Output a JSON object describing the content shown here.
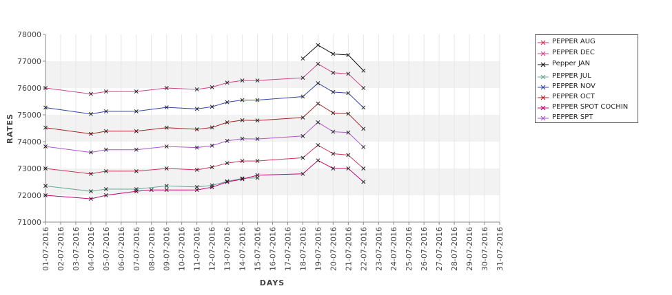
{
  "chart_data": {
    "type": "line",
    "xlabel": "DAYS",
    "ylabel": "RATES",
    "ylim": [
      71000,
      78000
    ],
    "yticks": [
      71000,
      72000,
      73000,
      74000,
      75000,
      76000,
      77000,
      78000
    ],
    "categories": [
      "01-07-2016",
      "02-07-2016",
      "03-07-2016",
      "04-07-2016",
      "05-07-2016",
      "06-07-2016",
      "07-07-2016",
      "08-07-2016",
      "09-07-2016",
      "10-07-2016",
      "11-07-2016",
      "12-07-2016",
      "13-07-2016",
      "14-07-2016",
      "15-07-2016",
      "16-07-2016",
      "17-07-2016",
      "18-07-2016",
      "19-07-2016",
      "20-07-2016",
      "21-07-2016",
      "22-07-2016",
      "23-07-2016",
      "24-07-2016",
      "25-07-2016",
      "26-07-2016",
      "27-07-2016",
      "28-07-2016",
      "29-07-2016",
      "30-07-2016",
      "31-07-2016"
    ],
    "grid": true,
    "legend_position": "right",
    "series": [
      {
        "name": "PEPPER AUG",
        "color": "#cc3355",
        "points": [
          [
            "01-07-2016",
            73000
          ],
          [
            "04-07-2016",
            72800
          ],
          [
            "05-07-2016",
            72900
          ],
          [
            "07-07-2016",
            72900
          ],
          [
            "09-07-2016",
            73000
          ],
          [
            "11-07-2016",
            72950
          ],
          [
            "12-07-2016",
            73050
          ],
          [
            "13-07-2016",
            73200
          ],
          [
            "14-07-2016",
            73280
          ],
          [
            "15-07-2016",
            73280
          ],
          [
            "18-07-2016",
            73400
          ],
          [
            "19-07-2016",
            73870
          ],
          [
            "20-07-2016",
            73550
          ],
          [
            "21-07-2016",
            73500
          ],
          [
            "22-07-2016",
            73000
          ]
        ]
      },
      {
        "name": "PEPPER DEC",
        "color": "#cc4488",
        "points": [
          [
            "01-07-2016",
            76000
          ],
          [
            "04-07-2016",
            75780
          ],
          [
            "05-07-2016",
            75870
          ],
          [
            "07-07-2016",
            75870
          ],
          [
            "09-07-2016",
            76000
          ],
          [
            "11-07-2016",
            75950
          ],
          [
            "12-07-2016",
            76030
          ],
          [
            "13-07-2016",
            76200
          ],
          [
            "14-07-2016",
            76280
          ],
          [
            "15-07-2016",
            76280
          ],
          [
            "18-07-2016",
            76380
          ],
          [
            "19-07-2016",
            76900
          ],
          [
            "20-07-2016",
            76570
          ],
          [
            "21-07-2016",
            76530
          ],
          [
            "22-07-2016",
            76000
          ]
        ]
      },
      {
        "name": "Pepper JAN",
        "color": "#111111",
        "points": [
          [
            "18-07-2016",
            77100
          ],
          [
            "19-07-2016",
            77600
          ],
          [
            "20-07-2016",
            77270
          ],
          [
            "21-07-2016",
            77230
          ],
          [
            "22-07-2016",
            76650
          ]
        ]
      },
      {
        "name": "PEPPER JUL",
        "color": "#66aa99",
        "points": [
          [
            "01-07-2016",
            72350
          ],
          [
            "04-07-2016",
            72150
          ],
          [
            "05-07-2016",
            72230
          ],
          [
            "07-07-2016",
            72230
          ],
          [
            "09-07-2016",
            72350
          ],
          [
            "11-07-2016",
            72310
          ],
          [
            "12-07-2016",
            72370
          ],
          [
            "13-07-2016",
            72520
          ],
          [
            "14-07-2016",
            72630
          ],
          [
            "15-07-2016",
            72650
          ]
        ]
      },
      {
        "name": "PEPPER NOV",
        "color": "#3344aa",
        "points": [
          [
            "01-07-2016",
            75270
          ],
          [
            "04-07-2016",
            75030
          ],
          [
            "05-07-2016",
            75130
          ],
          [
            "07-07-2016",
            75130
          ],
          [
            "09-07-2016",
            75280
          ],
          [
            "11-07-2016",
            75220
          ],
          [
            "12-07-2016",
            75300
          ],
          [
            "13-07-2016",
            75470
          ],
          [
            "14-07-2016",
            75550
          ],
          [
            "15-07-2016",
            75550
          ],
          [
            "18-07-2016",
            75680
          ],
          [
            "19-07-2016",
            76180
          ],
          [
            "20-07-2016",
            75850
          ],
          [
            "21-07-2016",
            75810
          ],
          [
            "22-07-2016",
            75270
          ]
        ]
      },
      {
        "name": "PEPPER OCT",
        "color": "#aa2222",
        "points": [
          [
            "01-07-2016",
            74520
          ],
          [
            "04-07-2016",
            74290
          ],
          [
            "05-07-2016",
            74390
          ],
          [
            "07-07-2016",
            74390
          ],
          [
            "09-07-2016",
            74520
          ],
          [
            "11-07-2016",
            74460
          ],
          [
            "12-07-2016",
            74530
          ],
          [
            "13-07-2016",
            74720
          ],
          [
            "14-07-2016",
            74800
          ],
          [
            "15-07-2016",
            74790
          ],
          [
            "18-07-2016",
            74900
          ],
          [
            "19-07-2016",
            75420
          ],
          [
            "20-07-2016",
            75070
          ],
          [
            "21-07-2016",
            75040
          ],
          [
            "22-07-2016",
            74480
          ]
        ]
      },
      {
        "name": "PEPPER SPOT COCHIN",
        "color": "#cc0077",
        "points": [
          [
            "01-07-2016",
            72000
          ],
          [
            "04-07-2016",
            71870
          ],
          [
            "05-07-2016",
            72000
          ],
          [
            "07-07-2016",
            72150
          ],
          [
            "08-07-2016",
            72200
          ],
          [
            "09-07-2016",
            72200
          ],
          [
            "11-07-2016",
            72200
          ],
          [
            "12-07-2016",
            72300
          ],
          [
            "13-07-2016",
            72500
          ],
          [
            "14-07-2016",
            72600
          ],
          [
            "15-07-2016",
            72750
          ],
          [
            "18-07-2016",
            72800
          ],
          [
            "19-07-2016",
            73300
          ],
          [
            "20-07-2016",
            73000
          ],
          [
            "21-07-2016",
            73000
          ],
          [
            "22-07-2016",
            72500
          ]
        ]
      },
      {
        "name": "PEPPER SPT",
        "color": "#aa55cc",
        "points": [
          [
            "01-07-2016",
            73820
          ],
          [
            "04-07-2016",
            73600
          ],
          [
            "05-07-2016",
            73700
          ],
          [
            "07-07-2016",
            73700
          ],
          [
            "09-07-2016",
            73820
          ],
          [
            "11-07-2016",
            73780
          ],
          [
            "12-07-2016",
            73850
          ],
          [
            "13-07-2016",
            74030
          ],
          [
            "14-07-2016",
            74110
          ],
          [
            "15-07-2016",
            74100
          ],
          [
            "18-07-2016",
            74210
          ],
          [
            "19-07-2016",
            74720
          ],
          [
            "20-07-2016",
            74370
          ],
          [
            "21-07-2016",
            74340
          ],
          [
            "22-07-2016",
            73800
          ]
        ]
      }
    ]
  }
}
